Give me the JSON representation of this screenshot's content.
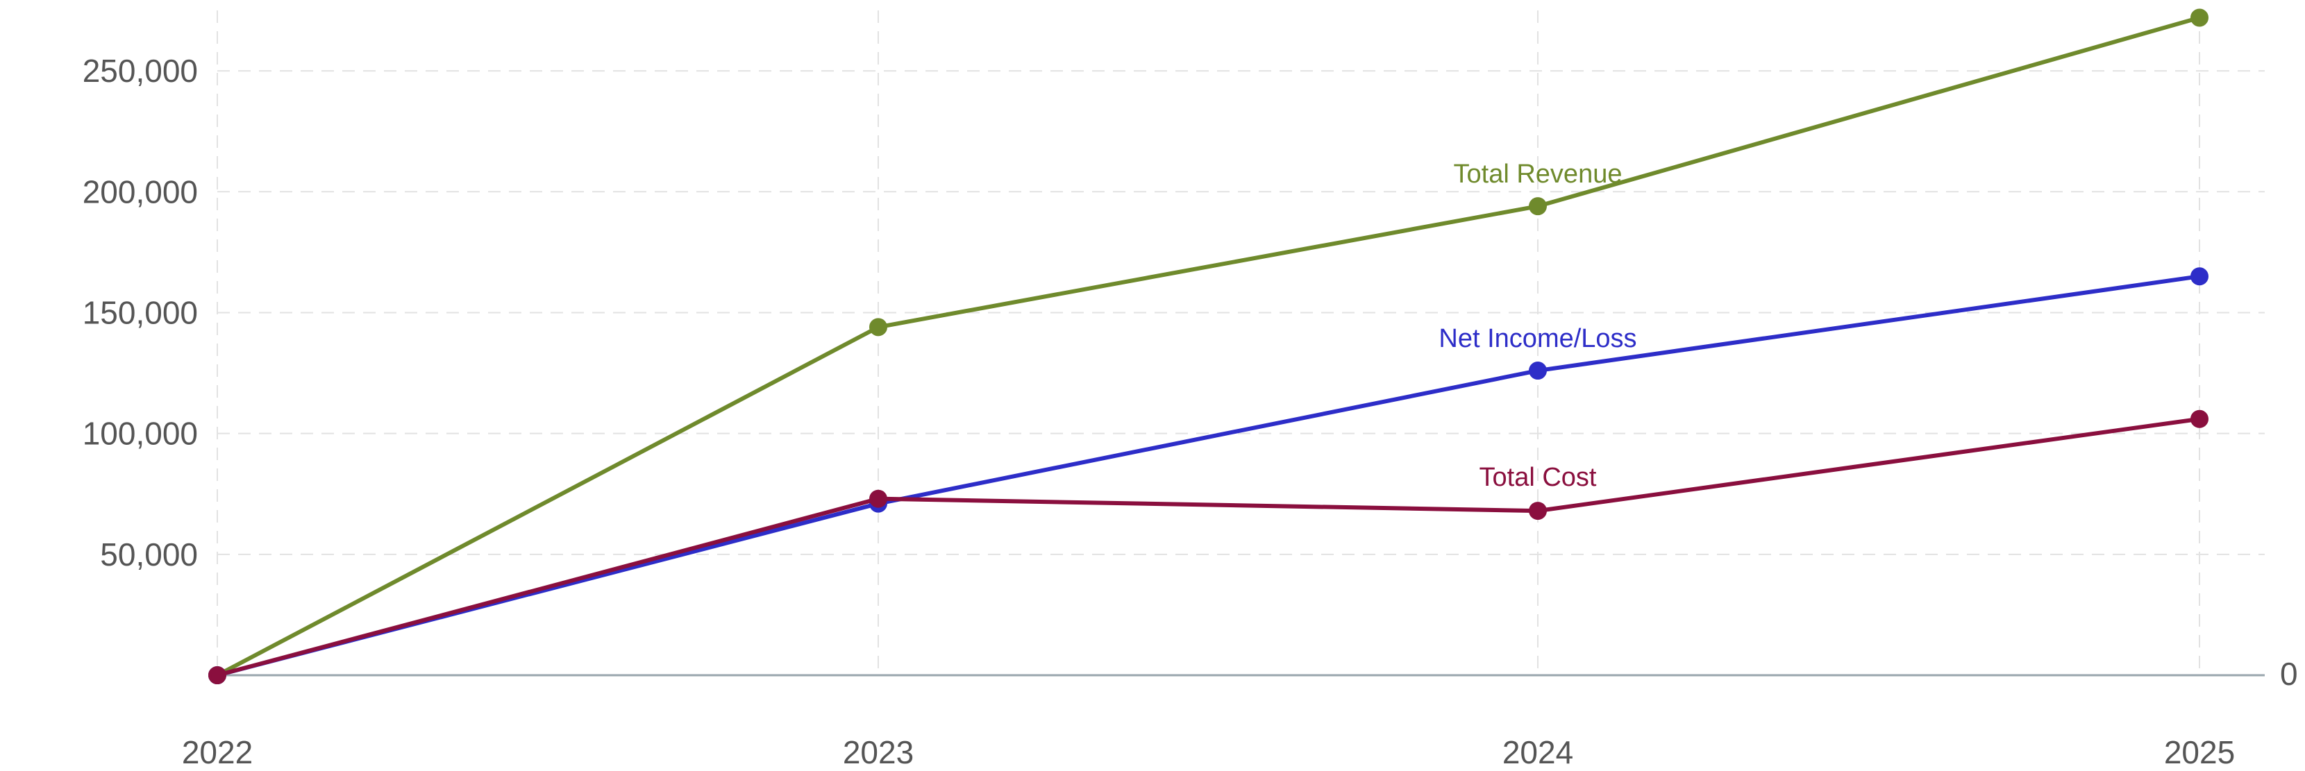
{
  "chart_data": {
    "type": "line",
    "title": "",
    "xlabel": "",
    "ylabel": "",
    "x": [
      "2022",
      "2023",
      "2024",
      "2025"
    ],
    "ylim": [
      0,
      275000
    ],
    "yticks": [
      50000,
      100000,
      150000,
      200000,
      250000
    ],
    "ytick_labels": [
      "50,000",
      "100,000",
      "150,000",
      "200,000",
      "250,000"
    ],
    "right_axis_label": "0",
    "grid": true,
    "legend": "inline labels",
    "series": [
      {
        "name": "Total Revenue",
        "color": "#6f8a2c",
        "values": [
          0,
          144000,
          194000,
          272000
        ]
      },
      {
        "name": "Net Income/Loss",
        "color": "#2d2dc8",
        "values": [
          0,
          71000,
          126000,
          165000
        ]
      },
      {
        "name": "Total Cost",
        "color": "#8a0f3e",
        "values": [
          0,
          73000,
          68000,
          106000
        ]
      }
    ]
  }
}
